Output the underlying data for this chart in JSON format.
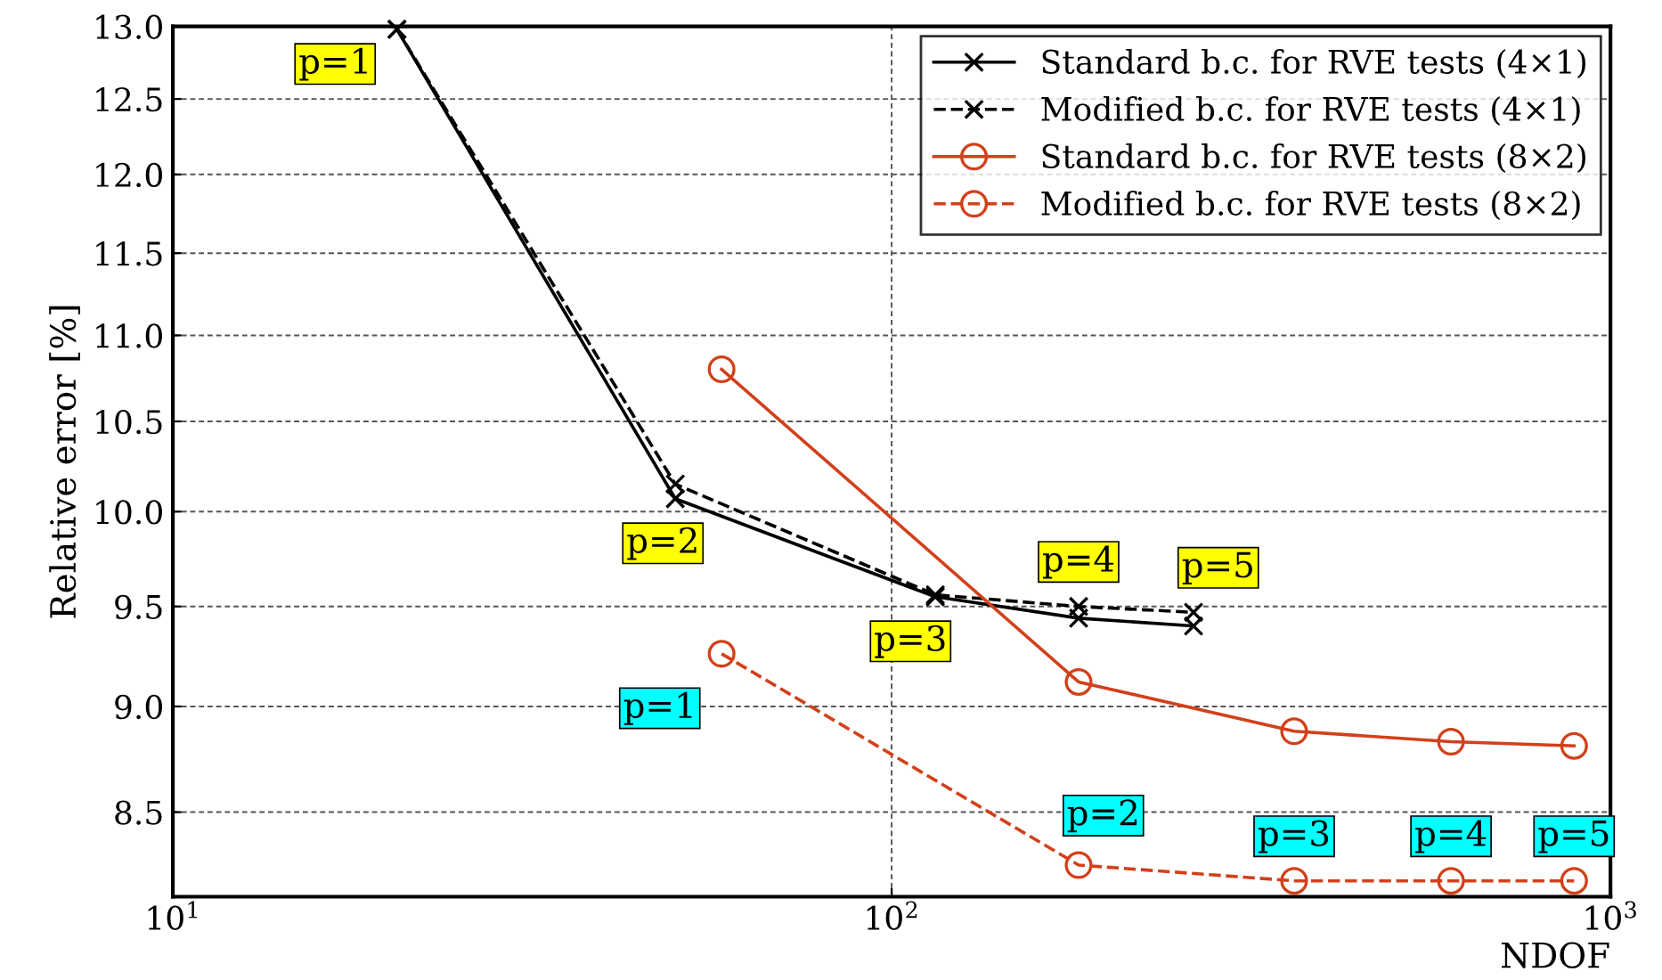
{
  "chart_data": {
    "type": "line",
    "xlabel": "NDOF",
    "ylabel": "Relative error [%]",
    "log": "xy",
    "grid": true,
    "legend": "top right",
    "xlim": [
      10,
      1000
    ],
    "xticks": [
      {
        "value": 10,
        "label": "10$^{1}$"
      },
      {
        "value": 100,
        "label": "10$^{2}$"
      },
      {
        "value": 1000,
        "label": "10$^{3}$"
      }
    ],
    "ylim": [
      8.12,
      13.0
    ],
    "yticks": [
      8.5,
      {
        "value": 9,
        "label": "9.0"
      },
      9.5,
      {
        "value": 10,
        "label": "10.0"
      },
      10.5,
      {
        "value": 11,
        "label": "11.0"
      },
      11.5,
      {
        "value": 12,
        "label": "12.0"
      },
      12.5,
      {
        "value": 13,
        "label": "13.0"
      }
    ],
    "series": [
      {
        "name": "Standard b.c. for RVE tests (4×1)",
        "color": "#000000",
        "marker": "cross",
        "line_style": "solid",
        "x": [
          20.5,
          50,
          115,
          182,
          263
        ],
        "values": [
          12.98,
          10.07,
          9.55,
          9.44,
          9.4
        ]
      },
      {
        "name": "Modified b.c. for RVE tests (4×1)",
        "color": "#000000",
        "marker": "cross",
        "line_style": "dashed",
        "x": [
          20.5,
          50,
          115,
          182,
          263
        ],
        "values": [
          12.98,
          10.15,
          9.56,
          9.5,
          9.47
        ]
      },
      {
        "name": "Standard b.c. for RVE tests (8×2)",
        "color": "#d2401a",
        "marker": "circle",
        "line_style": "solid",
        "x": [
          58,
          182,
          363,
          600,
          890
        ],
        "values": [
          10.8,
          9.12,
          8.88,
          8.83,
          8.81
        ]
      },
      {
        "name": "Modified b.c. for RVE tests (8×2)",
        "color": "#d2401a",
        "marker": "circle",
        "line_style": "dashed",
        "x": [
          58,
          182,
          363,
          600,
          890
        ],
        "values": [
          9.26,
          8.26,
          8.19,
          8.19,
          8.19
        ]
      }
    ],
    "annotations": [
      {
        "text": "p=1",
        "x": 20.5,
        "y": 12.98
      },
      {
        "text": "p=2",
        "x": 50,
        "y": 10.07
      },
      {
        "text": "p=3",
        "x": 115,
        "y": 9.55
      },
      {
        "text": "p=4",
        "x": 182,
        "y": 9.5
      },
      {
        "text": "p=5",
        "x": 263,
        "y": 9.47
      },
      {
        "text": "p=1",
        "x": 58,
        "y": 9.26
      },
      {
        "text": "p=2",
        "x": 182,
        "y": 8.26
      },
      {
        "text": "p=3",
        "x": 363,
        "y": 8.19
      },
      {
        "text": "p=4",
        "x": 600,
        "y": 8.19
      },
      {
        "text": "p=5",
        "x": 890,
        "y": 8.19
      }
    ]
  }
}
